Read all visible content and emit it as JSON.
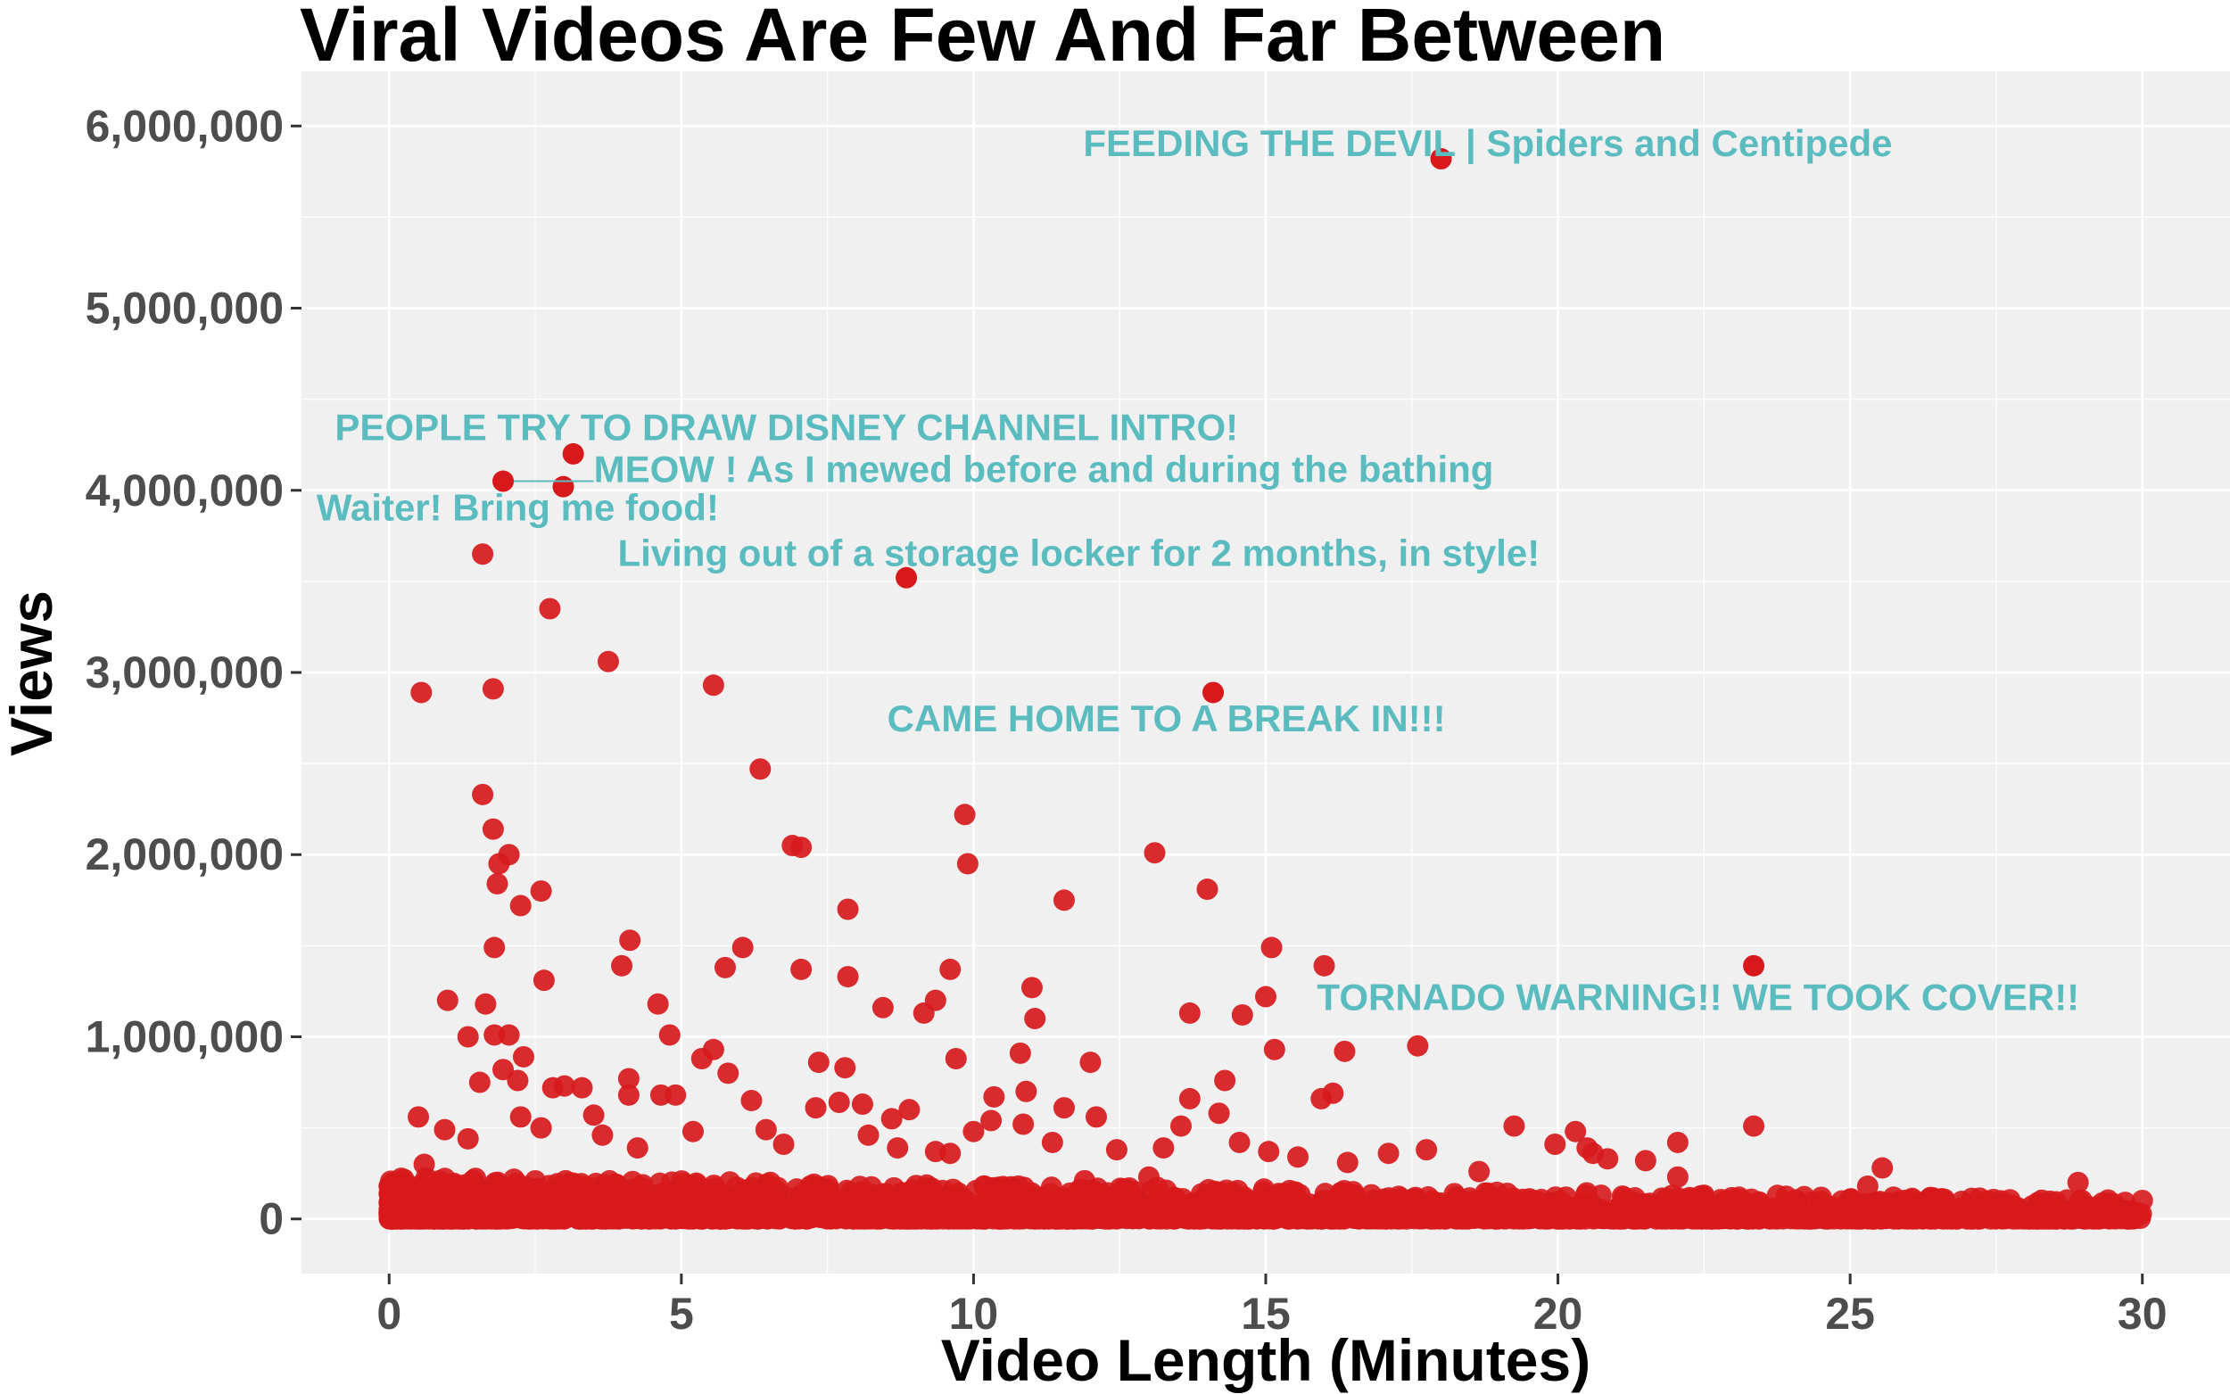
{
  "chart_data": {
    "type": "scatter",
    "title": "Viral Videos Are Few And Far Between",
    "xlabel": "Video Length (Minutes)",
    "ylabel": "Views",
    "xlim": [
      -1.5,
      31.5
    ],
    "ylim": [
      -300000,
      6300000
    ],
    "xticks": [
      0,
      5,
      10,
      15,
      20,
      25,
      30
    ],
    "xtick_labels": [
      "0",
      "5",
      "10",
      "15",
      "20",
      "25",
      "30"
    ],
    "yticks": [
      0,
      1000000,
      2000000,
      3000000,
      4000000,
      5000000,
      6000000
    ],
    "ytick_labels": [
      "0",
      "1,000,000",
      "2,000,000",
      "3,000,000",
      "4,000,000",
      "5,000,000",
      "6,000,000"
    ],
    "grid": true,
    "colors": {
      "point": "#d7191c",
      "annotation": "#5bbcc0",
      "panel": "#f0f0f0",
      "grid": "#ffffff",
      "ticks": "#4d4d4d"
    },
    "annotations": [
      {
        "text": "FEEDING THE DEVIL | Spiders and Centipede",
        "x": 18.0,
        "y": 5820000,
        "tx": 18.8,
        "ty": 5890000
      },
      {
        "text": "PEOPLE TRY TO DRAW DISNEY CHANNEL INTRO!",
        "x": 3.15,
        "y": 4200000,
        "tx": 6.8,
        "ty": 4330000
      },
      {
        "text": "MEOW ! As I mewed before and during the bathing",
        "x": 1.95,
        "y": 4050000,
        "tx": 11.2,
        "ty": 4100000
      },
      {
        "text": "Waiter! Bring me food!",
        "x": 2.98,
        "y": 4020000,
        "tx": 2.2,
        "ty": 3890000
      },
      {
        "text": "Living out of a storage locker for 2 months, in style!",
        "x": 8.85,
        "y": 3520000,
        "tx": 11.8,
        "ty": 3640000
      },
      {
        "text": "CAME HOME TO A BREAK IN!!!",
        "x": 14.1,
        "y": 2890000,
        "tx": 13.3,
        "ty": 2730000
      },
      {
        "text": "TORNADO WARNING!! WE TOOK COVER!!",
        "x": 23.35,
        "y": 1390000,
        "tx": 22.4,
        "ty": 1200000
      }
    ],
    "points": [
      [
        0.55,
        2890000
      ],
      [
        1.6,
        3650000
      ],
      [
        1.78,
        2910000
      ],
      [
        2.75,
        3350000
      ],
      [
        3.75,
        3060000
      ],
      [
        5.55,
        2930000
      ],
      [
        6.35,
        2470000
      ],
      [
        1.6,
        2330000
      ],
      [
        1.78,
        2140000
      ],
      [
        1.88,
        1950000
      ],
      [
        1.85,
        1840000
      ],
      [
        2.05,
        2000000
      ],
      [
        2.25,
        1720000
      ],
      [
        2.6,
        1800000
      ],
      [
        1.8,
        1490000
      ],
      [
        2.65,
        1310000
      ],
      [
        3.98,
        1390000
      ],
      [
        4.12,
        1530000
      ],
      [
        5.75,
        1380000
      ],
      [
        6.05,
        1490000
      ],
      [
        6.9,
        2050000
      ],
      [
        7.05,
        2040000
      ],
      [
        7.05,
        1370000
      ],
      [
        7.85,
        1700000
      ],
      [
        7.85,
        1330000
      ],
      [
        8.45,
        1160000
      ],
      [
        9.15,
        1130000
      ],
      [
        9.35,
        1200000
      ],
      [
        9.6,
        1370000
      ],
      [
        9.85,
        2220000
      ],
      [
        9.9,
        1950000
      ],
      [
        9.7,
        880000
      ],
      [
        11.0,
        1270000
      ],
      [
        11.05,
        1100000
      ],
      [
        11.55,
        1750000
      ],
      [
        10.8,
        910000
      ],
      [
        12.0,
        860000
      ],
      [
        13.1,
        2010000
      ],
      [
        14.0,
        1810000
      ],
      [
        13.7,
        1130000
      ],
      [
        14.6,
        1120000
      ],
      [
        15.1,
        1490000
      ],
      [
        15.0,
        1220000
      ],
      [
        15.15,
        930000
      ],
      [
        16.0,
        1390000
      ],
      [
        16.35,
        920000
      ],
      [
        17.6,
        950000
      ],
      [
        14.3,
        760000
      ],
      [
        15.95,
        660000
      ],
      [
        16.15,
        690000
      ],
      [
        14.2,
        580000
      ],
      [
        13.7,
        660000
      ],
      [
        13.55,
        510000
      ],
      [
        12.1,
        560000
      ],
      [
        11.55,
        610000
      ],
      [
        10.9,
        700000
      ],
      [
        10.35,
        670000
      ],
      [
        9.35,
        370000
      ],
      [
        8.1,
        630000
      ],
      [
        8.6,
        550000
      ],
      [
        8.9,
        600000
      ],
      [
        7.35,
        860000
      ],
      [
        7.8,
        830000
      ],
      [
        6.2,
        650000
      ],
      [
        5.8,
        800000
      ],
      [
        5.55,
        930000
      ],
      [
        5.35,
        880000
      ],
      [
        4.8,
        1010000
      ],
      [
        4.6,
        1180000
      ],
      [
        4.65,
        680000
      ],
      [
        4.1,
        770000
      ],
      [
        4.1,
        680000
      ],
      [
        3.5,
        570000
      ],
      [
        3.3,
        720000
      ],
      [
        3.0,
        730000
      ],
      [
        2.8,
        720000
      ],
      [
        2.3,
        890000
      ],
      [
        2.2,
        760000
      ],
      [
        2.05,
        1010000
      ],
      [
        1.95,
        820000
      ],
      [
        1.8,
        1010000
      ],
      [
        1.65,
        1180000
      ],
      [
        1.35,
        1000000
      ],
      [
        1.55,
        750000
      ],
      [
        1.0,
        1200000
      ],
      [
        0.95,
        490000
      ],
      [
        0.5,
        560000
      ],
      [
        0.6,
        300000
      ],
      [
        1.35,
        440000
      ],
      [
        2.25,
        560000
      ],
      [
        2.6,
        500000
      ],
      [
        3.65,
        460000
      ],
      [
        4.25,
        390000
      ],
      [
        4.9,
        680000
      ],
      [
        5.2,
        480000
      ],
      [
        6.45,
        490000
      ],
      [
        6.75,
        410000
      ],
      [
        7.3,
        610000
      ],
      [
        7.7,
        640000
      ],
      [
        8.2,
        460000
      ],
      [
        8.7,
        390000
      ],
      [
        9.6,
        360000
      ],
      [
        10.0,
        480000
      ],
      [
        10.3,
        540000
      ],
      [
        10.85,
        520000
      ],
      [
        11.35,
        420000
      ],
      [
        12.45,
        380000
      ],
      [
        13.25,
        390000
      ],
      [
        14.55,
        420000
      ],
      [
        15.05,
        370000
      ],
      [
        15.55,
        340000
      ],
      [
        16.4,
        310000
      ],
      [
        17.1,
        360000
      ],
      [
        17.75,
        380000
      ],
      [
        18.65,
        260000
      ],
      [
        19.25,
        510000
      ],
      [
        19.95,
        410000
      ],
      [
        20.3,
        480000
      ],
      [
        20.5,
        390000
      ],
      [
        20.6,
        360000
      ],
      [
        20.85,
        330000
      ],
      [
        21.5,
        320000
      ],
      [
        22.05,
        420000
      ],
      [
        22.05,
        230000
      ],
      [
        23.35,
        510000
      ],
      [
        25.55,
        280000
      ],
      [
        25.3,
        180000
      ],
      [
        28.9,
        200000
      ],
      [
        13.0,
        230000
      ],
      [
        11.9,
        210000
      ]
    ],
    "dense_band": {
      "x_max": 30,
      "y_max": 230000,
      "count": 2600
    }
  }
}
